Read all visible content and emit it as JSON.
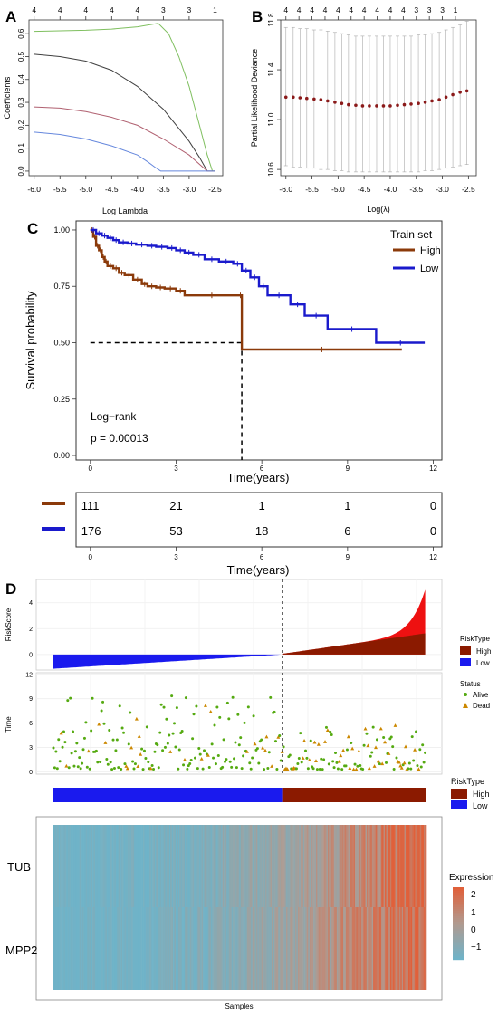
{
  "panels": {
    "a": "A",
    "b": "B",
    "c": "C",
    "d": "D"
  },
  "chart_data": [
    {
      "type": "line",
      "panel": "A",
      "xlabel": "Log Lambda",
      "ylabel": "Coefficients",
      "xlim": [
        -6.1,
        -2.35
      ],
      "ylim": [
        -0.02,
        0.66
      ],
      "xticks": [
        -6.0,
        -5.5,
        -5.0,
        -4.5,
        -4.0,
        -3.5,
        -3.0,
        -2.5
      ],
      "xtick_labels": [
        "-6.0",
        "-5.5",
        "-5.0",
        "-4.5",
        "-4.0",
        "-3.5",
        "-3.0",
        "-2.5"
      ],
      "yticks": [
        0.0,
        0.1,
        0.2,
        0.3,
        0.4,
        0.5,
        0.6
      ],
      "ytick_labels": [
        "0.0",
        "0.1",
        "0.2",
        "0.3",
        "0.4",
        "0.5",
        "0.6"
      ],
      "top_ticks": [
        -6.0,
        -5.5,
        -5.0,
        -4.5,
        -4.0,
        -3.5,
        -3.0,
        -2.5
      ],
      "top_labels": [
        "4",
        "4",
        "4",
        "4",
        "4",
        "3",
        "3",
        "1"
      ],
      "series": [
        {
          "color": "#7fbf5f",
          "x": [
            -6.0,
            -5.0,
            -4.5,
            -4.0,
            -3.6,
            -3.4,
            -3.2,
            -3.0,
            -2.8,
            -2.65,
            -2.55,
            -2.5
          ],
          "y": [
            0.61,
            0.615,
            0.62,
            0.63,
            0.645,
            0.6,
            0.5,
            0.37,
            0.2,
            0.07,
            0.0,
            0.0
          ]
        },
        {
          "color": "#404040",
          "x": [
            -6.0,
            -5.5,
            -5.0,
            -4.5,
            -4.0,
            -3.5,
            -3.0,
            -2.8,
            -2.7,
            -2.65,
            -2.5
          ],
          "y": [
            0.51,
            0.5,
            0.48,
            0.44,
            0.37,
            0.27,
            0.13,
            0.06,
            0.02,
            0.0,
            0.0
          ]
        },
        {
          "color": "#b06070",
          "x": [
            -6.0,
            -5.5,
            -5.0,
            -4.5,
            -4.0,
            -3.5,
            -3.0,
            -2.8,
            -2.7,
            -2.65,
            -2.5
          ],
          "y": [
            0.28,
            0.275,
            0.26,
            0.235,
            0.2,
            0.14,
            0.07,
            0.03,
            0.01,
            0.0,
            0.0
          ]
        },
        {
          "color": "#6688dd",
          "x": [
            -6.0,
            -5.5,
            -5.0,
            -4.5,
            -4.0,
            -3.8,
            -3.65,
            -3.55,
            -3.0,
            -2.5
          ],
          "y": [
            0.17,
            0.16,
            0.14,
            0.11,
            0.07,
            0.04,
            0.015,
            0.0,
            0.0,
            0.0
          ]
        }
      ]
    },
    {
      "type": "scatter",
      "panel": "B",
      "xlabel": "Log(λ)",
      "ylabel": "Partial Likelihood Deviance",
      "xlim": [
        -6.1,
        -2.35
      ],
      "ylim": [
        10.55,
        11.8
      ],
      "xticks": [
        -6.0,
        -5.5,
        -5.0,
        -4.5,
        -4.0,
        -3.5,
        -3.0,
        -2.5
      ],
      "xtick_labels": [
        "-6.0",
        "-5.5",
        "-5.0",
        "-4.5",
        "-4.0",
        "-3.5",
        "-3.0",
        "-2.5"
      ],
      "yticks": [
        10.6,
        11.0,
        11.4,
        11.8
      ],
      "ytick_labels": [
        "10.6",
        "11.0",
        "11.4",
        "11.8"
      ],
      "top_ticks": [
        -6.0,
        -5.75,
        -5.5,
        -5.25,
        -5.0,
        -4.75,
        -4.5,
        -4.25,
        -4.0,
        -3.75,
        -3.5,
        -3.25,
        -3.0,
        -2.75
      ],
      "top_labels": [
        "4",
        "4",
        "4",
        "4",
        "4",
        "4",
        "4",
        "4",
        "4",
        "4",
        "3",
        "3",
        "3",
        "1"
      ],
      "x": [
        -6.0,
        -5.86,
        -5.73,
        -5.6,
        -5.46,
        -5.33,
        -5.2,
        -5.06,
        -4.93,
        -4.8,
        -4.66,
        -4.53,
        -4.4,
        -4.26,
        -4.13,
        -4.0,
        -3.86,
        -3.73,
        -3.6,
        -3.46,
        -3.33,
        -3.2,
        -3.06,
        -2.93,
        -2.8,
        -2.66,
        -2.53
      ],
      "y": [
        11.18,
        11.18,
        11.175,
        11.17,
        11.165,
        11.16,
        11.15,
        11.14,
        11.13,
        11.12,
        11.115,
        11.11,
        11.11,
        11.11,
        11.11,
        11.11,
        11.115,
        11.12,
        11.125,
        11.13,
        11.14,
        11.15,
        11.16,
        11.18,
        11.2,
        11.22,
        11.23
      ],
      "ci_low": [
        10.63,
        10.62,
        10.62,
        10.61,
        10.61,
        10.6,
        10.6,
        10.59,
        10.59,
        10.58,
        10.58,
        10.58,
        10.58,
        10.58,
        10.58,
        10.58,
        10.58,
        10.58,
        10.58,
        10.58,
        10.59,
        10.59,
        10.6,
        10.61,
        10.62,
        10.63,
        10.64
      ],
      "ci_high": [
        11.74,
        11.74,
        11.73,
        11.73,
        11.72,
        11.72,
        11.71,
        11.7,
        11.69,
        11.68,
        11.67,
        11.67,
        11.67,
        11.67,
        11.67,
        11.67,
        11.67,
        11.67,
        11.67,
        11.68,
        11.68,
        11.69,
        11.7,
        11.72,
        11.74,
        11.76,
        11.79
      ],
      "color": "#8b1a1a"
    },
    {
      "type": "line",
      "panel": "C",
      "xlabel": "Time(years)",
      "ylabel": "Survival probability",
      "xlim": [
        -0.5,
        12.3
      ],
      "ylim": [
        -0.02,
        1.04
      ],
      "xticks": [
        0,
        3,
        6,
        9,
        12
      ],
      "xtick_labels": [
        "0",
        "3",
        "6",
        "9",
        "12"
      ],
      "yticks": [
        0.0,
        0.25,
        0.5,
        0.75,
        1.0
      ],
      "ytick_labels": [
        "0.00",
        "0.25",
        "0.50",
        "0.75",
        "1.00"
      ],
      "legend_title": "Train set",
      "legend_position": "top-right",
      "annotation_lines": [
        "Log−rank",
        "p = 0.00013"
      ],
      "series": [
        {
          "name": "High",
          "color": "#8b3a0a",
          "x": [
            0,
            0.1,
            0.2,
            0.3,
            0.4,
            0.5,
            0.6,
            0.8,
            1.0,
            1.2,
            1.5,
            1.8,
            2.0,
            2.3,
            2.6,
            3.0,
            3.3,
            5.2,
            5.3,
            10.9
          ],
          "y": [
            1.0,
            0.97,
            0.93,
            0.91,
            0.88,
            0.86,
            0.84,
            0.83,
            0.81,
            0.8,
            0.78,
            0.76,
            0.75,
            0.745,
            0.74,
            0.73,
            0.71,
            0.71,
            0.47,
            0.47
          ]
        },
        {
          "name": "Low",
          "color": "#1a1acc",
          "x": [
            0,
            0.2,
            0.4,
            0.6,
            0.8,
            1.0,
            1.3,
            1.6,
            2.0,
            2.3,
            2.7,
            3.0,
            3.3,
            3.6,
            4.0,
            4.5,
            5.0,
            5.3,
            5.6,
            5.9,
            6.2,
            7.0,
            7.5,
            8.3,
            10.0,
            11.7
          ],
          "y": [
            1.0,
            0.985,
            0.975,
            0.965,
            0.955,
            0.945,
            0.94,
            0.935,
            0.93,
            0.925,
            0.92,
            0.91,
            0.9,
            0.89,
            0.87,
            0.86,
            0.85,
            0.82,
            0.79,
            0.75,
            0.71,
            0.67,
            0.62,
            0.56,
            0.5,
            0.5
          ]
        }
      ],
      "median_line": {
        "y": 0.5,
        "x": 5.3
      }
    },
    {
      "type": "table",
      "panel": "C-risk",
      "xlabel": "Time(years)",
      "xtick_labels": [
        "0",
        "3",
        "6",
        "9",
        "12"
      ],
      "rows": [
        {
          "name": "High",
          "color": "#8b3a0a",
          "values": [
            "111",
            "21",
            "1",
            "1",
            "0"
          ]
        },
        {
          "name": "Low",
          "color": "#1a1acc",
          "values": [
            "176",
            "53",
            "18",
            "6",
            "0"
          ]
        }
      ]
    },
    {
      "type": "area",
      "panel": "D-riskscore",
      "ylabel": "RiskScore",
      "ylim": [
        -1.2,
        5.8
      ],
      "yticks": [
        0,
        2,
        4
      ],
      "ytick_labels": [
        "0",
        "2",
        "4"
      ],
      "n_samples": 287,
      "cutoff_index": 176,
      "legend_title": "RiskType",
      "legend": [
        {
          "label": "High",
          "color": "#8b1a00"
        },
        {
          "label": "Low",
          "color": "#1a1aee"
        }
      ],
      "low_color": "#1a1aee",
      "high_color": "#8b1a00",
      "high_tail_color": "#ee1111"
    },
    {
      "type": "scatter",
      "panel": "D-time",
      "ylabel": "Time",
      "ylim": [
        -0.3,
        12.2
      ],
      "yticks": [
        0,
        3,
        6,
        9,
        12
      ],
      "ytick_labels": [
        "0",
        "3",
        "6",
        "9",
        "12"
      ],
      "legend_title": "Status",
      "legend": [
        {
          "label": "Alive",
          "color": "#55aa11"
        },
        {
          "label": "Dead",
          "color": "#cc8800"
        }
      ],
      "n_samples": 287,
      "cutoff_index": 176
    },
    {
      "type": "bar",
      "panel": "D-risktype",
      "legend_title": "RiskType",
      "legend": [
        {
          "label": "High",
          "color": "#8b1a00"
        },
        {
          "label": "Low",
          "color": "#1a1aee"
        }
      ],
      "low_count": 176,
      "high_count": 111
    },
    {
      "type": "heatmap",
      "panel": "D-heatmap",
      "xlabel": "Samples",
      "genes": [
        "TUB",
        "MPP2"
      ],
      "legend_title": "Expression",
      "legend_ticks": [
        "2",
        "1",
        "0",
        "−1"
      ],
      "legend_values": [
        2,
        1,
        0,
        -1
      ],
      "color_low": "#6fb3c8",
      "color_mid": "#b09a90",
      "color_high": "#e0603a",
      "n_samples": 287
    }
  ]
}
